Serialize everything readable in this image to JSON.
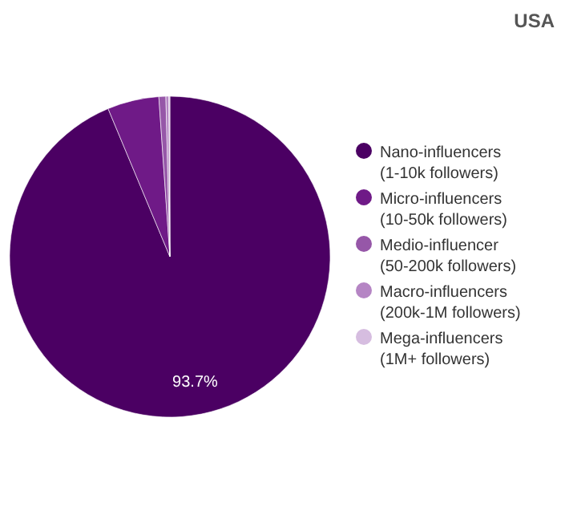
{
  "chart_data": {
    "type": "pie",
    "title": "USA",
    "categories": [
      "Nano-influencers (1-10k followers)",
      "Micro-influencers (10-50k followers)",
      "Medio-influencer (50-200k followers)",
      "Macro-influencers (200k-1M followers)",
      "Mega-influencers (1M+ followers)"
    ],
    "values": [
      93.7,
      5.2,
      0.7,
      0.3,
      0.1
    ],
    "colors": [
      "#4b0063",
      "#6f1a87",
      "#9657a8",
      "#b585c4",
      "#d6bde0"
    ],
    "value_labels": [
      "93.7%",
      null,
      null,
      null,
      null
    ],
    "legend": "right"
  }
}
